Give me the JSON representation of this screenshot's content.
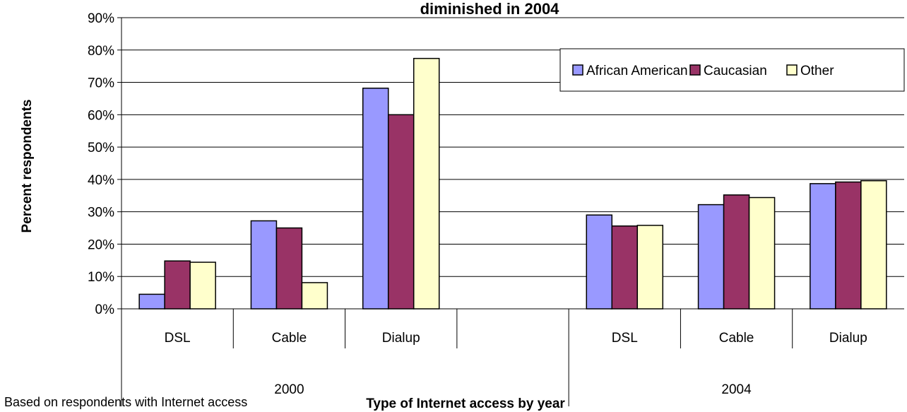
{
  "chart_data": {
    "type": "bar",
    "title": "diminished in 2004",
    "xlabel": "Type of Internet access by year",
    "ylabel": "Percent respondents",
    "note": "Based on respondents with Internet access",
    "ylim": [
      0,
      90
    ],
    "yticks": [
      "0%",
      "10%",
      "20%",
      "30%",
      "40%",
      "50%",
      "60%",
      "70%",
      "80%",
      "90%"
    ],
    "groups": [
      {
        "label": "2000",
        "categories": [
          "DSL",
          "Cable",
          "Dialup"
        ]
      },
      {
        "label": "2004",
        "categories": [
          "DSL",
          "Cable",
          "Dialup"
        ]
      }
    ],
    "series": [
      {
        "name": "African American",
        "color": "#9999ff",
        "values": [
          4.5,
          27.2,
          68.2,
          29.0,
          32.2,
          38.7
        ]
      },
      {
        "name": "Caucasian",
        "color": "#993366",
        "values": [
          14.8,
          25.0,
          60.0,
          25.6,
          35.2,
          39.2
        ]
      },
      {
        "name": "Other",
        "color": "#ffffcc",
        "values": [
          14.4,
          8.1,
          77.4,
          25.8,
          34.4,
          39.6
        ]
      }
    ],
    "grid": true,
    "legend_position": "top-right"
  }
}
